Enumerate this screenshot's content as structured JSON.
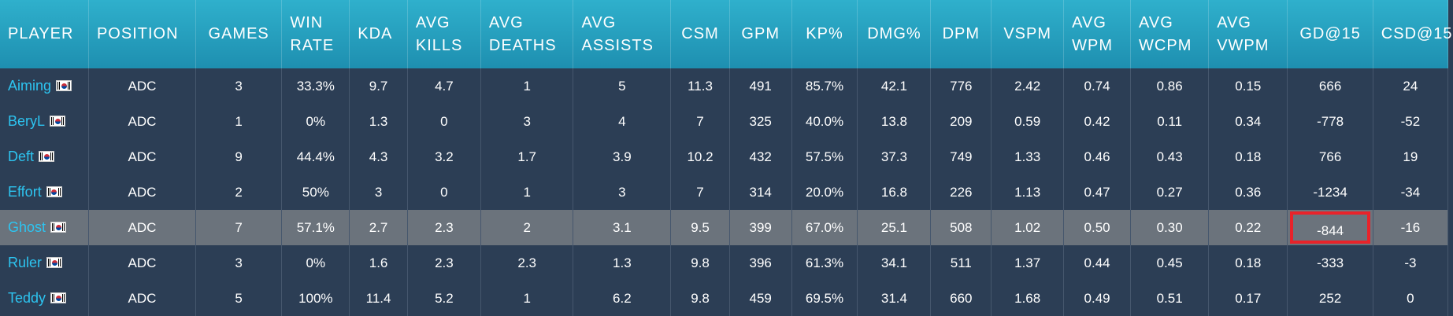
{
  "table": {
    "columns": [
      "PLAYER",
      "POSITION",
      "GAMES",
      "WIN RATE",
      "KDA",
      "AVG KILLS",
      "AVG DEATHS",
      "AVG ASSISTS",
      "CSM",
      "GPM",
      "KP%",
      "DMG%",
      "DPM",
      "VSPM",
      "AVG WPM",
      "AVG WCPM",
      "AVG VWPM",
      "GD@15",
      "CSD@15"
    ],
    "rows": [
      {
        "player": "Aiming",
        "flag": "kr-flag-icon",
        "position": "ADC",
        "games": "3",
        "win_rate": "33.3%",
        "kda": "9.7",
        "avg_kills": "4.7",
        "avg_deaths": "1",
        "avg_assists": "5",
        "csm": "11.3",
        "gpm": "491",
        "kp": "85.7%",
        "dmg": "42.1",
        "dpm": "776",
        "vspm": "2.42",
        "avg_wpm": "0.74",
        "avg_wcpm": "0.86",
        "avg_vwpm": "0.15",
        "gd15": "666",
        "csd15": "24"
      },
      {
        "player": "BeryL",
        "flag": "kr-flag-icon",
        "position": "ADC",
        "games": "1",
        "win_rate": "0%",
        "kda": "1.3",
        "avg_kills": "0",
        "avg_deaths": "3",
        "avg_assists": "4",
        "csm": "7",
        "gpm": "325",
        "kp": "40.0%",
        "dmg": "13.8",
        "dpm": "209",
        "vspm": "0.59",
        "avg_wpm": "0.42",
        "avg_wcpm": "0.11",
        "avg_vwpm": "0.34",
        "gd15": "-778",
        "csd15": "-52"
      },
      {
        "player": "Deft",
        "flag": "kr-flag-icon",
        "position": "ADC",
        "games": "9",
        "win_rate": "44.4%",
        "kda": "4.3",
        "avg_kills": "3.2",
        "avg_deaths": "1.7",
        "avg_assists": "3.9",
        "csm": "10.2",
        "gpm": "432",
        "kp": "57.5%",
        "dmg": "37.3",
        "dpm": "749",
        "vspm": "1.33",
        "avg_wpm": "0.46",
        "avg_wcpm": "0.43",
        "avg_vwpm": "0.18",
        "gd15": "766",
        "csd15": "19"
      },
      {
        "player": "Effort",
        "flag": "kr-flag-icon",
        "position": "ADC",
        "games": "2",
        "win_rate": "50%",
        "kda": "3",
        "avg_kills": "0",
        "avg_deaths": "1",
        "avg_assists": "3",
        "csm": "7",
        "gpm": "314",
        "kp": "20.0%",
        "dmg": "16.8",
        "dpm": "226",
        "vspm": "1.13",
        "avg_wpm": "0.47",
        "avg_wcpm": "0.27",
        "avg_vwpm": "0.36",
        "gd15": "-1234",
        "csd15": "-34"
      },
      {
        "player": "Ghost",
        "flag": "kr-flag-icon",
        "position": "ADC",
        "games": "7",
        "win_rate": "57.1%",
        "kda": "2.7",
        "avg_kills": "2.3",
        "avg_deaths": "2",
        "avg_assists": "3.1",
        "csm": "9.5",
        "gpm": "399",
        "kp": "67.0%",
        "dmg": "25.1",
        "dpm": "508",
        "vspm": "1.02",
        "avg_wpm": "0.50",
        "avg_wcpm": "0.30",
        "avg_vwpm": "0.22",
        "gd15": "-844",
        "csd15": "-16",
        "highlighted": true,
        "marked_field": "gd15",
        "mark_color": "#e8232a"
      },
      {
        "player": "Ruler",
        "flag": "kr-flag-icon",
        "position": "ADC",
        "games": "3",
        "win_rate": "0%",
        "kda": "1.6",
        "avg_kills": "2.3",
        "avg_deaths": "2.3",
        "avg_assists": "1.3",
        "csm": "9.8",
        "gpm": "396",
        "kp": "61.3%",
        "dmg": "34.1",
        "dpm": "511",
        "vspm": "1.37",
        "avg_wpm": "0.44",
        "avg_wcpm": "0.45",
        "avg_vwpm": "0.18",
        "gd15": "-333",
        "csd15": "-3"
      },
      {
        "player": "Teddy",
        "flag": "kr-flag-icon",
        "position": "ADC",
        "games": "5",
        "win_rate": "100%",
        "kda": "11.4",
        "avg_kills": "5.2",
        "avg_deaths": "1",
        "avg_assists": "6.2",
        "csm": "9.8",
        "gpm": "459",
        "kp": "69.5%",
        "dmg": "31.4",
        "dpm": "660",
        "vspm": "1.68",
        "avg_wpm": "0.49",
        "avg_wcpm": "0.51",
        "avg_vwpm": "0.17",
        "gd15": "252",
        "csd15": "0"
      }
    ]
  },
  "colors": {
    "header_top": "#2fb0cc",
    "header_bottom": "#1e8fb0",
    "row_bg": "#2c3e55",
    "row_highlight": "#6b737c",
    "player_link": "#2dc4f0",
    "mark": "#e8232a"
  }
}
